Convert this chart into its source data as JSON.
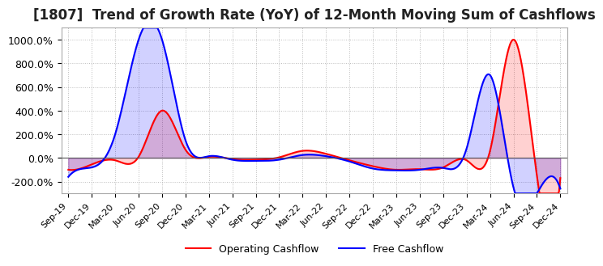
{
  "title": "[1807]  Trend of Growth Rate (YoY) of 12-Month Moving Sum of Cashflows",
  "title_fontsize": 12,
  "ylim": [
    -300,
    1100
  ],
  "yticks": [
    -200,
    0,
    200,
    400,
    600,
    800,
    1000
  ],
  "background_color": "#ffffff",
  "grid_color": "#bbbbbb",
  "operating_color": "#ff0000",
  "free_color": "#0000ff",
  "x_labels": [
    "Sep-19",
    "Dec-19",
    "Mar-20",
    "Jun-20",
    "Sep-20",
    "Dec-20",
    "Mar-21",
    "Jun-21",
    "Sep-21",
    "Dec-21",
    "Mar-22",
    "Jun-22",
    "Sep-22",
    "Dec-22",
    "Mar-23",
    "Jun-23",
    "Sep-23",
    "Dec-23",
    "Mar-24",
    "Jun-24",
    "Sep-24",
    "Dec-24"
  ],
  "operating_cashflow": [
    -100,
    -55,
    -20,
    10,
    400,
    70,
    10,
    -10,
    -15,
    5,
    60,
    35,
    -20,
    -70,
    -100,
    -95,
    -80,
    -20,
    60,
    1000,
    -150,
    -170
  ],
  "free_cashflow": [
    -160,
    -80,
    200,
    1000,
    1000,
    150,
    15,
    -15,
    -25,
    -15,
    25,
    15,
    -30,
    -90,
    -105,
    -100,
    -85,
    80,
    700,
    -250,
    -300,
    -260
  ],
  "legend_labels": [
    "Operating Cashflow",
    "Free Cashflow"
  ]
}
